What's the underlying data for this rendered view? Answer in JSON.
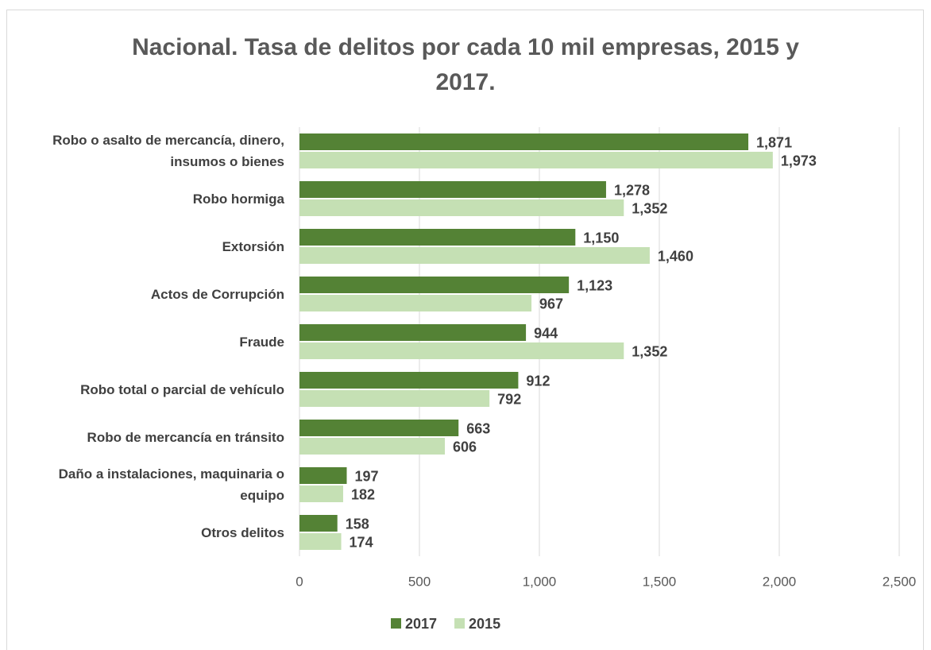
{
  "chart_data": {
    "type": "bar",
    "orientation": "horizontal",
    "title": "Nacional. Tasa de delitos por cada 10 mil empresas, 2015 y 2017.",
    "categories": [
      "Robo o asalto de mercancía, dinero, insumos o bienes",
      "Robo hormiga",
      "Extorsión",
      "Actos de Corrupción",
      "Fraude",
      "Robo total o parcial de vehículo",
      "Robo de mercancía en tránsito",
      "Daño a instalaciones, maquinaria o equipo",
      "Otros delitos"
    ],
    "series": [
      {
        "name": "2017",
        "color": "#548235",
        "values": [
          1871,
          1278,
          1150,
          1123,
          944,
          912,
          663,
          197,
          158
        ],
        "value_labels": [
          "1,871",
          "1,278",
          "1,150",
          "1,123",
          "944",
          "912",
          "663",
          "197",
          "158"
        ]
      },
      {
        "name": "2015",
        "color": "#c5e0b4",
        "values": [
          1973,
          1352,
          1460,
          967,
          1352,
          792,
          606,
          182,
          174
        ],
        "value_labels": [
          "1,973",
          "1,352",
          "1,460",
          "967",
          "1,352",
          "792",
          "606",
          "182",
          "174"
        ]
      }
    ],
    "xlim": [
      0,
      2500
    ],
    "xticks": [
      0,
      500,
      {
        "value": 1000,
        "label": "1,000"
      },
      {
        "value": 1500,
        "label": "1,500"
      },
      {
        "value": 2000,
        "label": "2,000"
      },
      {
        "value": 2500,
        "label": "2,500"
      }
    ],
    "grid": true,
    "legend": "bottom"
  }
}
